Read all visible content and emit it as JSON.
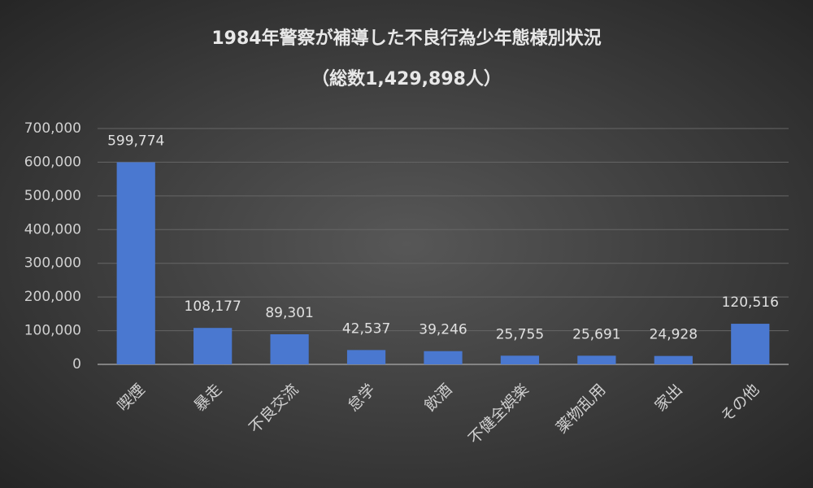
{
  "chart_data": {
    "type": "bar",
    "title": "1984年警察が補導した不良行為少年態様別状況",
    "subtitle": "（総数1,429,898人）",
    "categories": [
      "喫煙",
      "暴走",
      "不良交流",
      "怠学",
      "飲酒",
      "不健全娯楽",
      "薬物乱用",
      "家出",
      "その他"
    ],
    "values": [
      599774,
      108177,
      89301,
      42537,
      39246,
      25755,
      25691,
      24928,
      120516
    ],
    "value_labels": [
      "599,774",
      "108,177",
      "89,301",
      "42,537",
      "39,246",
      "25,755",
      "25,691",
      "24,928",
      "120,516"
    ],
    "color": "#4a78d0",
    "ylim": [
      0,
      700000
    ],
    "yticks": [
      0,
      {
        "value": 100000,
        "label": "100,000"
      },
      {
        "value": 200000,
        "label": "200,000"
      },
      {
        "value": 300000,
        "label": "300,000"
      },
      {
        "value": 400000,
        "label": "400,000"
      },
      {
        "value": 500000,
        "label": "500,000"
      },
      {
        "value": 600000,
        "label": "600,000"
      },
      {
        "value": 700000,
        "label": "700,000"
      }
    ],
    "grid": true
  }
}
